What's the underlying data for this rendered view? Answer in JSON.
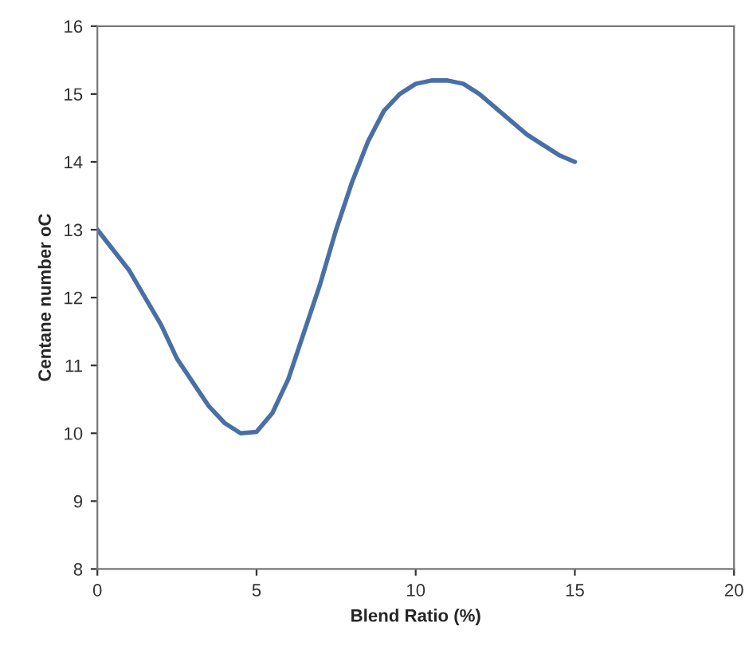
{
  "chart_data": {
    "type": "line",
    "xlabel": "Blend Ratio (%)",
    "ylabel": "Centane number oC",
    "x": [
      0,
      0.5,
      1,
      1.5,
      2,
      2.5,
      3,
      3.5,
      4,
      4.5,
      5,
      5.5,
      6,
      6.5,
      7,
      7.5,
      8,
      8.5,
      9,
      9.5,
      10,
      10.5,
      11,
      11.5,
      12,
      12.5,
      13,
      13.5,
      14,
      14.5,
      15
    ],
    "series": [
      {
        "color": "#4a6fa5",
        "values": [
          13,
          12.7,
          12.4,
          12.0,
          11.6,
          11.1,
          10.75,
          10.4,
          10.15,
          10.0,
          10.02,
          10.3,
          10.8,
          11.5,
          12.2,
          13.0,
          13.7,
          14.3,
          14.75,
          15.0,
          15.15,
          15.2,
          15.2,
          15.15,
          15.0,
          14.8,
          14.6,
          14.4,
          14.25,
          14.1,
          14.0
        ]
      }
    ],
    "xlim": [
      0,
      20
    ],
    "xticks": [
      0,
      5,
      10,
      15,
      20
    ],
    "ylim": [
      8,
      16
    ],
    "yticks": [
      8,
      9,
      10,
      11,
      12,
      13,
      14,
      15,
      16
    ],
    "grid": false,
    "marker": "none",
    "line_style": "solid"
  }
}
